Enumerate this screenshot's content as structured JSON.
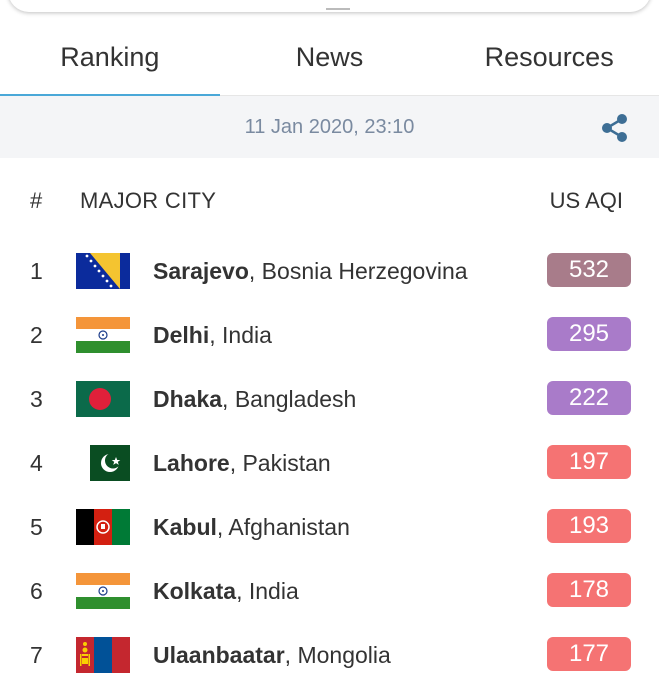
{
  "tabs": [
    {
      "label": "Ranking",
      "active": true
    },
    {
      "label": "News",
      "active": false
    },
    {
      "label": "Resources",
      "active": false
    }
  ],
  "datebar": {
    "timestamp": "11 Jan 2020, 23:10",
    "share_icon": "share-icon"
  },
  "table": {
    "headers": {
      "rank": "#",
      "city": "MAJOR CITY",
      "aqi": "US AQI"
    },
    "rows": [
      {
        "rank": "1",
        "city": "Sarajevo",
        "country": ", Bosnia Herzegovina",
        "aqi": "532",
        "flag": "bosnia",
        "color": "#a87c8a"
      },
      {
        "rank": "2",
        "city": "Delhi",
        "country": ", India",
        "aqi": "295",
        "flag": "india",
        "color": "#a97bc9"
      },
      {
        "rank": "3",
        "city": "Dhaka",
        "country": ", Bangladesh",
        "aqi": "222",
        "flag": "bangladesh",
        "color": "#a97bc9"
      },
      {
        "rank": "4",
        "city": "Lahore",
        "country": ", Pakistan",
        "aqi": "197",
        "flag": "pakistan",
        "color": "#f57373"
      },
      {
        "rank": "5",
        "city": "Kabul",
        "country": ", Afghanistan",
        "aqi": "193",
        "flag": "afghanistan",
        "color": "#f57373"
      },
      {
        "rank": "6",
        "city": "Kolkata",
        "country": ", India",
        "aqi": "178",
        "flag": "india",
        "color": "#f57373"
      },
      {
        "rank": "7",
        "city": "Ulaanbaatar",
        "country": ", Mongolia",
        "aqi": "177",
        "flag": "mongolia",
        "color": "#f57373"
      }
    ]
  }
}
